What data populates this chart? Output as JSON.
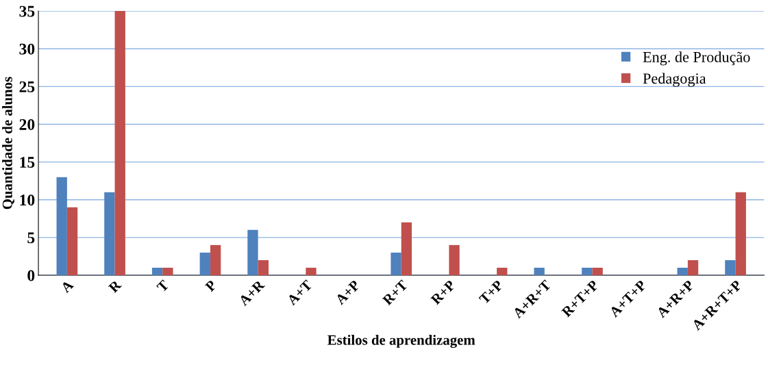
{
  "chart_data": {
    "type": "bar",
    "xlabel": "Estilos de aprendizagem",
    "ylabel": "Quantidade de alunos",
    "categories": [
      "A",
      "R",
      "T",
      "P",
      "A+R",
      "A+T",
      "A+P",
      "R+T",
      "R+P",
      "T+P",
      "A+R+T",
      "R+T+P",
      "A+T+P",
      "A+R+P",
      "A+R+T+P"
    ],
    "series": [
      {
        "name": "Eng. de Produção",
        "color": "#4f81bd",
        "values": [
          13,
          11,
          1,
          3,
          6,
          0,
          0,
          3,
          0,
          0,
          1,
          1,
          0,
          1,
          2
        ]
      },
      {
        "name": "Pedagogia",
        "color": "#c0504d",
        "values": [
          9,
          35,
          1,
          4,
          2,
          1,
          0,
          7,
          4,
          1,
          0,
          1,
          0,
          2,
          11
        ]
      }
    ],
    "ylim": [
      0,
      35
    ],
    "yticks": [
      0,
      5,
      10,
      15,
      20,
      25,
      30,
      35
    ],
    "grid": "y",
    "legend": "right"
  }
}
